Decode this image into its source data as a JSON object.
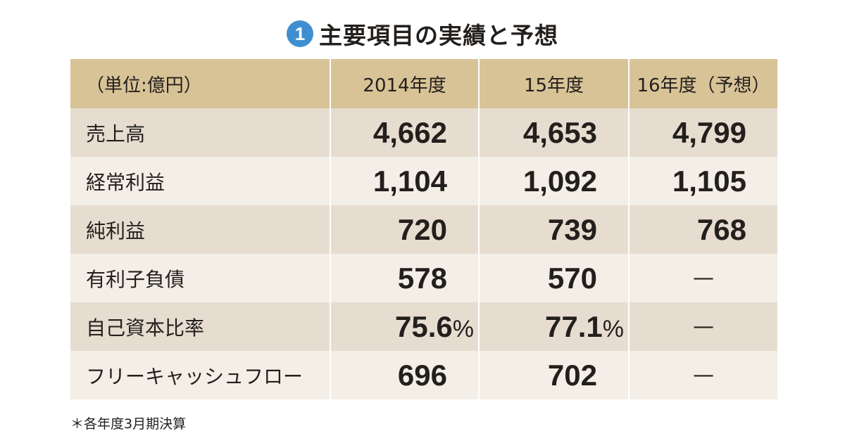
{
  "title": {
    "badge": "1",
    "text": "主要項目の実績と予想"
  },
  "table": {
    "headers": [
      "（単位:億円）",
      "2014年度",
      "15年度",
      "16年度（予想）"
    ],
    "rows": [
      {
        "label": "売上高",
        "values": [
          "4,662",
          "4,653",
          "4,799"
        ]
      },
      {
        "label": "経常利益",
        "values": [
          "1,104",
          "1,092",
          "1,105"
        ]
      },
      {
        "label": "純利益",
        "values": [
          "720",
          "739",
          "768"
        ]
      },
      {
        "label": "有利子負債",
        "values": [
          "578",
          "570",
          "—"
        ]
      },
      {
        "label": "自己資本比率",
        "values": [
          "75.6",
          "77.1",
          "—"
        ],
        "unit": "%"
      },
      {
        "label": "フリーキャッシュフロー",
        "values": [
          "696",
          "702",
          "—"
        ]
      }
    ]
  },
  "footnote": "＊各年度3月期決算",
  "colors": {
    "badge": "#3f8fd0",
    "header_bg": "#d8c397",
    "row_dark": "#e6ddd0",
    "row_light": "#f3eee6"
  }
}
